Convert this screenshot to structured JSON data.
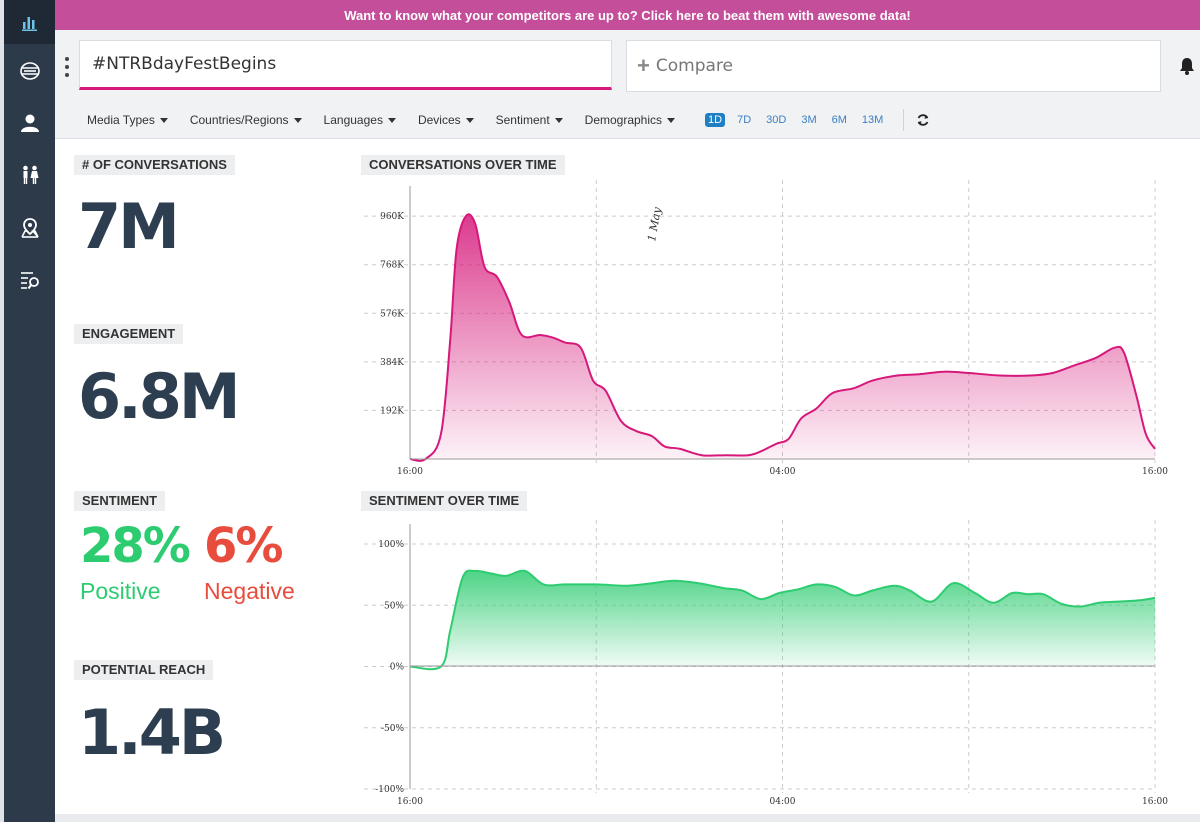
{
  "banner": {
    "text": "Want to know what your competitors are up to? Click here to beat them with awesome data!"
  },
  "sidebar": {
    "items": [
      {
        "icon": "bar-chart-icon",
        "active": true
      },
      {
        "icon": "globe-icon"
      },
      {
        "icon": "user-icon"
      },
      {
        "icon": "people-icon"
      },
      {
        "icon": "map-pin-icon"
      },
      {
        "icon": "list-search-icon"
      }
    ]
  },
  "search": {
    "value": "#NTRBdayFestBegins",
    "placeholder": ""
  },
  "compare": {
    "label": "Compare"
  },
  "filters": [
    "Media Types",
    "Countries/Regions",
    "Languages",
    "Devices",
    "Sentiment",
    "Demographics"
  ],
  "ranges": [
    "1D",
    "7D",
    "30D",
    "3M",
    "6M",
    "13M"
  ],
  "active_range": "1D",
  "metrics": {
    "conversations": {
      "label": "# OF CONVERSATIONS",
      "value": "7M"
    },
    "engagement": {
      "label": "ENGAGEMENT",
      "value": "6.8M"
    },
    "sentiment": {
      "label": "SENTIMENT",
      "positive_value": "28%",
      "positive_label": "Positive",
      "negative_value": "6%",
      "negative_label": "Negative"
    },
    "reach": {
      "label": "POTENTIAL REACH",
      "value": "1.4B"
    }
  },
  "colors": {
    "accent": "#d6187a",
    "positive": "#2ecc71",
    "negative": "#e74c3c",
    "sidebar": "#2d3a4a",
    "banner": "#c44e9a",
    "range_active": "#1f7fc4"
  },
  "chart_data": [
    {
      "type": "area",
      "title": "CONVERSATIONS OVER TIME",
      "annotation": "1 May",
      "x_ticks": [
        "16:00",
        "04:00",
        "16:00"
      ],
      "y_ticks": [
        "192K",
        "384K",
        "576K",
        "768K",
        "960K"
      ],
      "ylim": [
        0,
        1000000
      ],
      "xlim": [
        0,
        24
      ],
      "grid": true,
      "color": "#d6187a",
      "points": [
        [
          0,
          0
        ],
        [
          0.5,
          0
        ],
        [
          1,
          100000
        ],
        [
          1.3,
          480000
        ],
        [
          1.5,
          830000
        ],
        [
          1.8,
          960000
        ],
        [
          2.1,
          930000
        ],
        [
          2.4,
          760000
        ],
        [
          2.8,
          720000
        ],
        [
          3.2,
          620000
        ],
        [
          3.6,
          490000
        ],
        [
          4.2,
          490000
        ],
        [
          4.6,
          480000
        ],
        [
          5,
          460000
        ],
        [
          5.5,
          440000
        ],
        [
          5.9,
          310000
        ],
        [
          6.3,
          270000
        ],
        [
          6.8,
          150000
        ],
        [
          7.3,
          110000
        ],
        [
          7.8,
          90000
        ],
        [
          8.2,
          50000
        ],
        [
          8.7,
          40000
        ],
        [
          9.4,
          15000
        ],
        [
          10.2,
          15000
        ],
        [
          10.9,
          15000
        ],
        [
          11.3,
          30000
        ],
        [
          11.8,
          60000
        ],
        [
          12.2,
          80000
        ],
        [
          12.6,
          160000
        ],
        [
          13.1,
          200000
        ],
        [
          13.6,
          260000
        ],
        [
          14.3,
          280000
        ],
        [
          14.9,
          310000
        ],
        [
          15.7,
          330000
        ],
        [
          16.4,
          335000
        ],
        [
          17.2,
          345000
        ],
        [
          18,
          340000
        ],
        [
          19,
          330000
        ],
        [
          20,
          330000
        ],
        [
          20.7,
          340000
        ],
        [
          21.4,
          370000
        ],
        [
          22.1,
          400000
        ],
        [
          22.7,
          440000
        ],
        [
          23,
          420000
        ],
        [
          23.4,
          250000
        ],
        [
          23.7,
          100000
        ],
        [
          24,
          40000
        ]
      ]
    },
    {
      "type": "area",
      "title": "SENTIMENT OVER TIME",
      "x_ticks": [
        "16:00",
        "04:00",
        "16:00"
      ],
      "y_ticks": [
        "-100%",
        "-50%",
        "0%",
        "50%",
        "100%"
      ],
      "ylim": [
        -100,
        100
      ],
      "xlim": [
        0,
        24
      ],
      "grid": true,
      "color": "#2ecc71",
      "points": [
        [
          0,
          0
        ],
        [
          1,
          0
        ],
        [
          1.3,
          30
        ],
        [
          1.7,
          73
        ],
        [
          2.1,
          78
        ],
        [
          2.6,
          76
        ],
        [
          3.1,
          74
        ],
        [
          3.7,
          78
        ],
        [
          4.3,
          67
        ],
        [
          5,
          67
        ],
        [
          6,
          67
        ],
        [
          7,
          66
        ],
        [
          7.8,
          68
        ],
        [
          8.5,
          70
        ],
        [
          9.3,
          68
        ],
        [
          10.1,
          64
        ],
        [
          10.7,
          62
        ],
        [
          11.3,
          55
        ],
        [
          11.9,
          60
        ],
        [
          12.5,
          63
        ],
        [
          13.1,
          67
        ],
        [
          13.7,
          65
        ],
        [
          14.3,
          58
        ],
        [
          14.9,
          62
        ],
        [
          15.6,
          66
        ],
        [
          16.1,
          62
        ],
        [
          16.8,
          53
        ],
        [
          17.5,
          68
        ],
        [
          18.2,
          60
        ],
        [
          18.8,
          52
        ],
        [
          19.4,
          60
        ],
        [
          19.9,
          59
        ],
        [
          20.4,
          59
        ],
        [
          21,
          51
        ],
        [
          21.6,
          49
        ],
        [
          22.2,
          52
        ],
        [
          22.8,
          53
        ],
        [
          23.5,
          54
        ],
        [
          24,
          56
        ]
      ]
    }
  ]
}
